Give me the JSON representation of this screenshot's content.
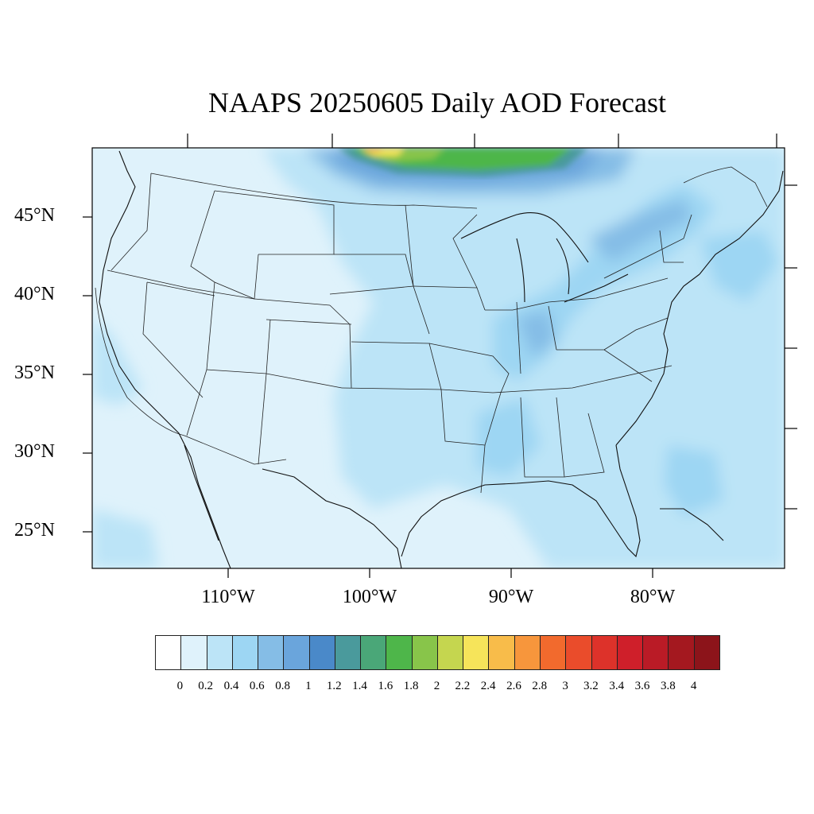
{
  "title": "NAAPS 20250605 Daily AOD Forecast",
  "map": {
    "projection": "lat-lon, continental United States",
    "lat_labels": [
      "45°N",
      "40°N",
      "35°N",
      "30°N",
      "25°N"
    ],
    "lon_labels": [
      "110°W",
      "100°W",
      "90°W",
      "80°W"
    ],
    "base_color": "#dff2fb",
    "aod_regions": [
      {
        "description": "plume north of Great Lakes/Minnesota",
        "aod_max": 2.5
      },
      {
        "description": "eastern US / Ohio Valley",
        "aod_range": [
          0.4,
          0.8
        ]
      },
      {
        "description": "Gulf Coast / Atlantic",
        "aod_range": [
          0.2,
          0.6
        ]
      },
      {
        "description": "western US",
        "aod_range": [
          0,
          0.2
        ]
      }
    ]
  },
  "colorbar": {
    "colors": [
      "#ffffff",
      "#dff2fb",
      "#bce4f7",
      "#9dd6f3",
      "#85bde6",
      "#6aa5dc",
      "#4a89c9",
      "#4a9a9c",
      "#4aa778",
      "#4eb64a",
      "#88c54a",
      "#c5d64f",
      "#f6e45a",
      "#f8bc4a",
      "#f7963c",
      "#f26a2d",
      "#ea4c2b",
      "#dd322a",
      "#cf1f2a",
      "#ba1b26",
      "#a4181f",
      "#8c141a"
    ],
    "tick_labels": [
      "0",
      "0.2",
      "0.4",
      "0.6",
      "0.8",
      "1",
      "1.2",
      "1.4",
      "1.6",
      "1.8",
      "2",
      "2.2",
      "2.4",
      "2.6",
      "2.8",
      "3",
      "3.2",
      "3.4",
      "3.6",
      "3.8",
      "4"
    ]
  }
}
